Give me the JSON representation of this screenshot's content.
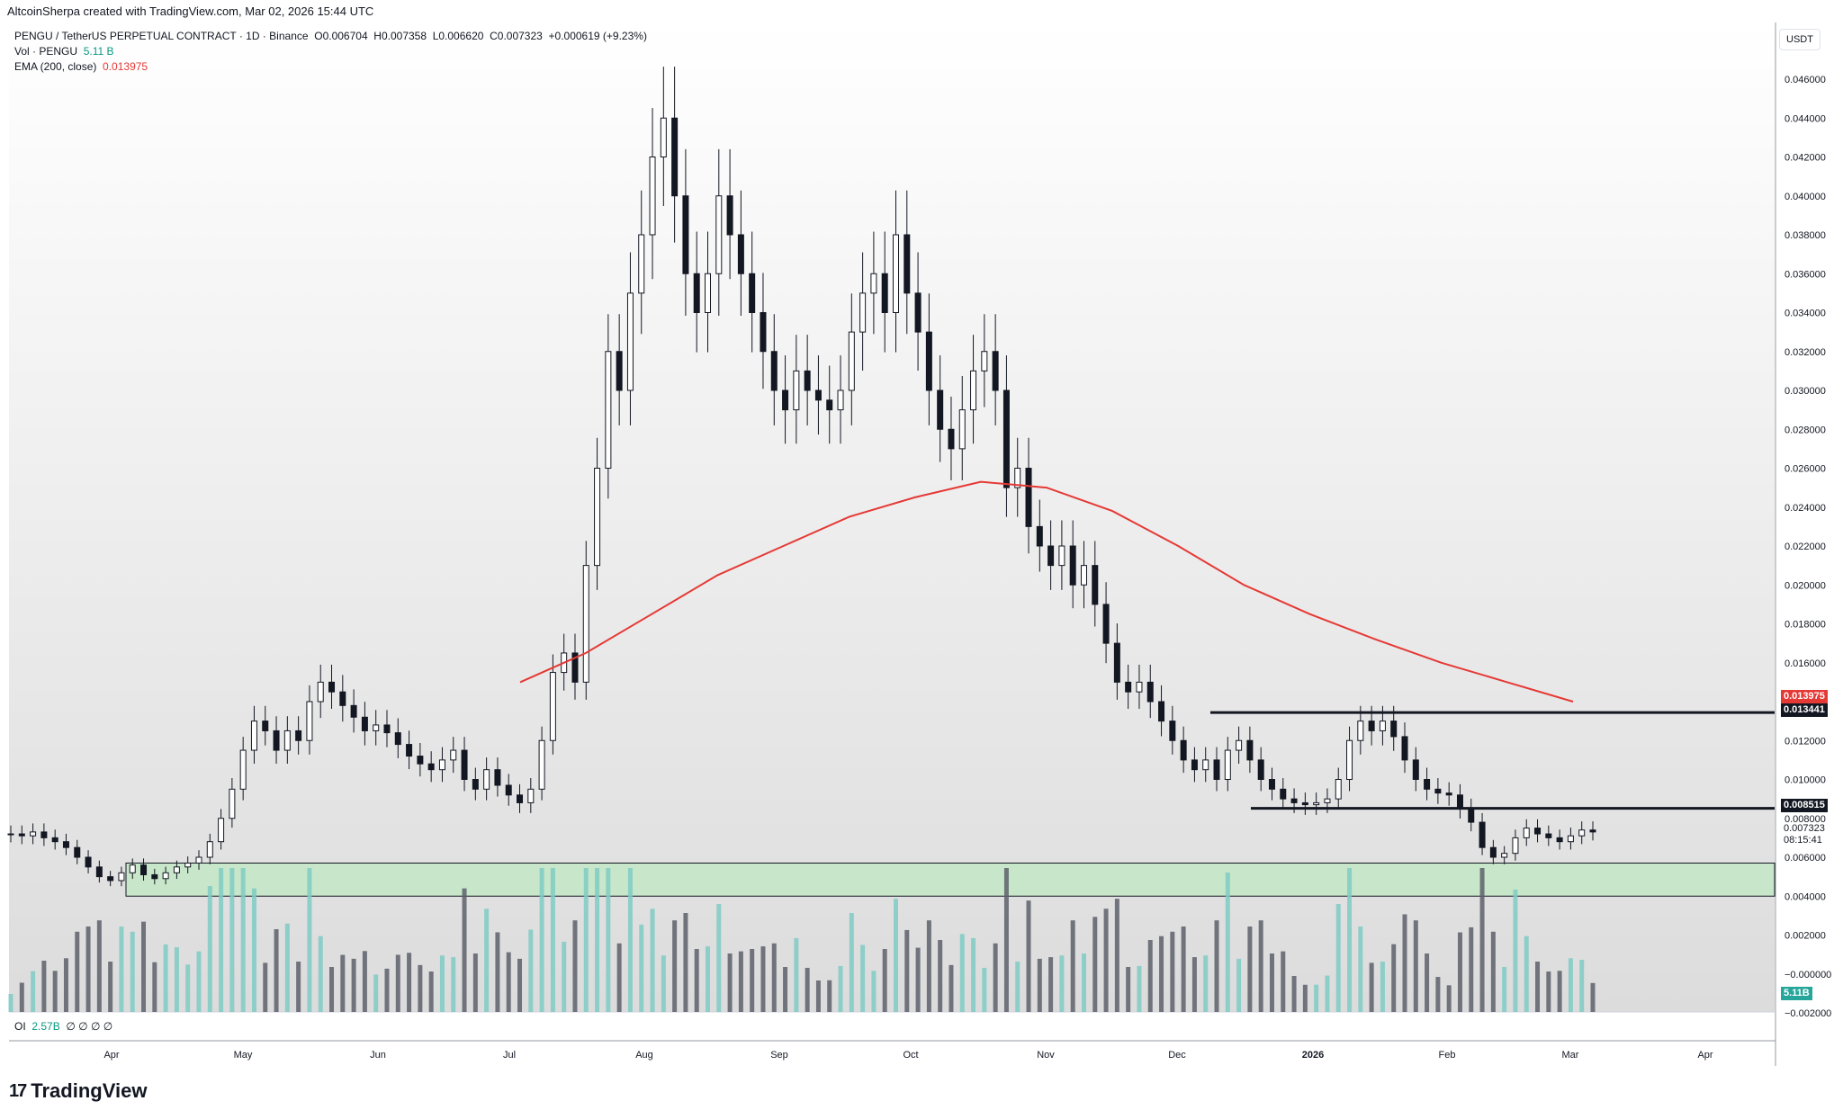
{
  "header": {
    "created_line": "AltcoinSherpa created with TradingView.com, Mar 02, 2026 15:44 UTC",
    "symbol_line": "PENGU / TetherUS PERPETUAL CONTRACT · 1D · Binance",
    "ohlc": {
      "O": "0.006704",
      "H": "0.007358",
      "L": "0.006620",
      "C": "0.007323",
      "change": "+0.000619 (+9.23%)"
    },
    "vol_label": "Vol · PENGU",
    "vol_value": "5.11 B",
    "ema_label": "EMA (200, close)",
    "ema_value": "0.013975"
  },
  "currency_button": "USDT",
  "oi": {
    "label": "OI",
    "value": "2.57B",
    "slots": "∅ ∅ ∅ ∅"
  },
  "brand": "TradingView",
  "price_labels": {
    "ema": "0.013975",
    "resistance": "0.013441",
    "support": "0.008515",
    "last": "0.007323",
    "countdown": "08:15:41",
    "volume": "5.11B"
  },
  "colors": {
    "up": "#131722",
    "down": "#131722",
    "ema": "#e53935",
    "zone": "#c8e6c9",
    "vol_up": "#80cbc4",
    "vol_down": "#5d606b",
    "bg_gradient_top": "#ffffff",
    "bg_gradient_bottom": "#dcdcdc"
  },
  "chart_data": {
    "type": "candlestick",
    "y_axis_ticks": [
      "0.046000",
      "0.044000",
      "0.042000",
      "0.040000",
      "0.038000",
      "0.036000",
      "0.034000",
      "0.032000",
      "0.030000",
      "0.028000",
      "0.026000",
      "0.024000",
      "0.022000",
      "0.020000",
      "0.018000",
      "0.016000",
      "0.014000",
      "0.012000",
      "0.010000",
      "0.008000",
      "0.006000",
      "0.004000",
      "0.002000",
      "−0.000000",
      "−0.002000"
    ],
    "x_axis_ticks": [
      "Apr",
      "May",
      "Jun",
      "Jul",
      "Aug",
      "Sep",
      "Oct",
      "Nov",
      "Dec",
      "2026",
      "Feb",
      "Mar",
      "Apr"
    ],
    "ylim": [
      -0.002,
      0.046
    ],
    "series": [
      {
        "name": "PENGU / TetherUS",
        "note": "approximate daily closes",
        "values": [
          0.0072,
          0.0071,
          0.0073,
          0.007,
          0.0068,
          0.0065,
          0.006,
          0.0055,
          0.005,
          0.0048,
          0.0052,
          0.0056,
          0.0051,
          0.0049,
          0.0052,
          0.0055,
          0.0057,
          0.006,
          0.0068,
          0.008,
          0.0095,
          0.0115,
          0.013,
          0.0125,
          0.0115,
          0.0125,
          0.012,
          0.014,
          0.015,
          0.0145,
          0.0138,
          0.0132,
          0.0125,
          0.0128,
          0.0124,
          0.0118,
          0.0112,
          0.0108,
          0.0105,
          0.011,
          0.0115,
          0.01,
          0.0095,
          0.0105,
          0.0097,
          0.0092,
          0.0088,
          0.0095,
          0.012,
          0.0155,
          0.0165,
          0.015,
          0.021,
          0.026,
          0.032,
          0.03,
          0.035,
          0.038,
          0.042,
          0.044,
          0.04,
          0.036,
          0.034,
          0.036,
          0.04,
          0.038,
          0.036,
          0.034,
          0.032,
          0.03,
          0.029,
          0.031,
          0.03,
          0.0295,
          0.029,
          0.03,
          0.033,
          0.035,
          0.036,
          0.034,
          0.038,
          0.035,
          0.033,
          0.03,
          0.028,
          0.027,
          0.029,
          0.031,
          0.032,
          0.03,
          0.025,
          0.026,
          0.023,
          0.022,
          0.021,
          0.022,
          0.02,
          0.021,
          0.019,
          0.017,
          0.015,
          0.0145,
          0.015,
          0.014,
          0.013,
          0.012,
          0.011,
          0.0105,
          0.011,
          0.01,
          0.0115,
          0.012,
          0.011,
          0.01,
          0.0095,
          0.009,
          0.0088,
          0.0087,
          0.0088,
          0.009,
          0.01,
          0.012,
          0.013,
          0.0125,
          0.013,
          0.0122,
          0.011,
          0.01,
          0.0095,
          0.0093,
          0.0092,
          0.0085,
          0.0078,
          0.0065,
          0.006,
          0.0062,
          0.007,
          0.0075,
          0.0072,
          0.007,
          0.0068,
          0.0071,
          0.0074,
          0.0073
        ]
      },
      {
        "name": "EMA (200, close)",
        "note": "approximate",
        "values": [
          0.015,
          0.0165,
          0.0185,
          0.0205,
          0.022,
          0.0235,
          0.0245,
          0.0253,
          0.025,
          0.0238,
          0.022,
          0.02,
          0.0185,
          0.0172,
          0.016,
          0.015,
          0.014
        ]
      }
    ],
    "levels": [
      {
        "label": "resistance",
        "value": 0.013441
      },
      {
        "label": "support",
        "value": 0.008515
      }
    ],
    "zones": [
      {
        "label": "support zone",
        "from": 0.004,
        "to": 0.0057
      }
    ],
    "grid": false
  }
}
